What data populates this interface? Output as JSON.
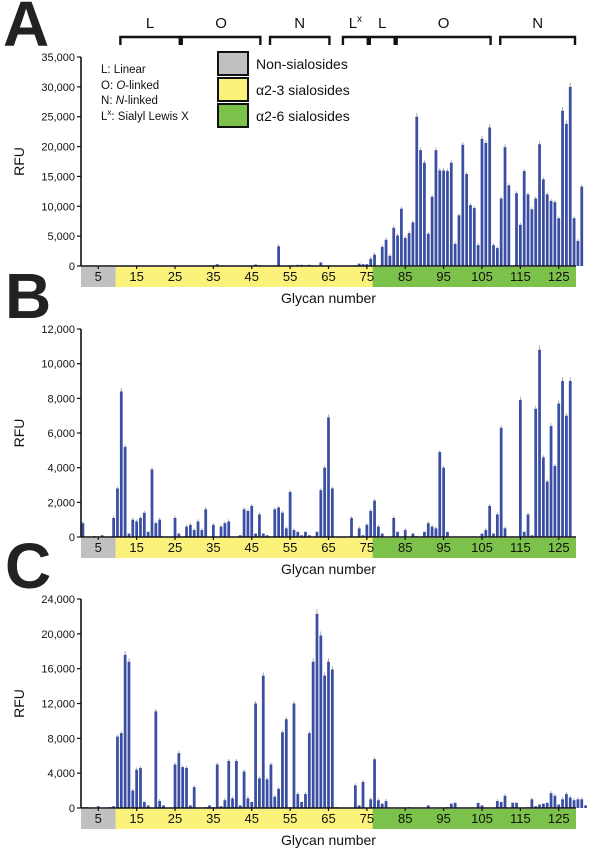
{
  "colors": {
    "bar": "#3a4fa3",
    "error": "#999999",
    "non_sialo": "#c0c0c0",
    "a23": "#faf27a",
    "a26": "#7cc24a",
    "axis": "#111111"
  },
  "legend": {
    "items": [
      {
        "label": "Non-sialosides",
        "color": "#c0c0c0"
      },
      {
        "label": "α2-3 sialosides",
        "color": "#faf27a"
      },
      {
        "label": "α2-6 sialosides",
        "color": "#7cc24a"
      }
    ]
  },
  "key": {
    "lines": [
      {
        "abbr": "L",
        "sup": "",
        "text": ": Linear",
        "ital": "",
        "rest": ""
      },
      {
        "abbr": "O",
        "sup": "",
        "text": ": ",
        "ital": "O",
        "rest": "-linked"
      },
      {
        "abbr": "N",
        "sup": "",
        "text": ": ",
        "ital": "N",
        "rest": "-linked"
      },
      {
        "abbr": "L",
        "sup": "x",
        "text": ": Sialyl Lewis X",
        "ital": "",
        "rest": ""
      }
    ]
  },
  "brackets": [
    {
      "label": "L",
      "sup": "",
      "from": 11,
      "to": 26
    },
    {
      "label": "O",
      "sup": "",
      "from": 27,
      "to": 47
    },
    {
      "label": "N",
      "sup": "",
      "from": 50,
      "to": 65
    },
    {
      "label": "L",
      "sup": "x",
      "from": 69,
      "to": 75
    },
    {
      "label": "L",
      "sup": "",
      "from": 76,
      "to": 82
    },
    {
      "label": "O",
      "sup": "",
      "from": 83,
      "to": 107
    },
    {
      "label": "N",
      "sup": "",
      "from": 110,
      "to": 129
    }
  ],
  "chart_data": [
    {
      "panel": "A",
      "type": "bar",
      "xlabel": "Glycan number",
      "ylabel": "RFU",
      "ylim": [
        0,
        35000
      ],
      "yticks": [
        0,
        5000,
        10000,
        15000,
        20000,
        25000,
        30000,
        35000
      ],
      "ytick_labels": [
        "0",
        "5,000",
        "10,000",
        "15,000",
        "20,000",
        "25,000",
        "30,000",
        "35,000"
      ],
      "xticks": [
        5,
        15,
        25,
        35,
        45,
        55,
        65,
        75,
        85,
        95,
        105,
        115,
        125
      ],
      "categories_range": [
        1,
        129
      ],
      "bands": [
        {
          "type": "Non-sialosides",
          "from": 1,
          "to": 9
        },
        {
          "type": "α2-3 sialosides",
          "from": 10,
          "to": 76
        },
        {
          "type": "α2-6 sialosides",
          "from": 77,
          "to": 129
        }
      ],
      "values": [
        0,
        0,
        0,
        0,
        0,
        0,
        0,
        0,
        0,
        0,
        0,
        0,
        0,
        0,
        0,
        0,
        0,
        0,
        0,
        0,
        0,
        0,
        0,
        0,
        0,
        0,
        0,
        0,
        0,
        0,
        0,
        0,
        0,
        0,
        0,
        300,
        100,
        0,
        0,
        0,
        0,
        0,
        0,
        0,
        0,
        250,
        150,
        0,
        0,
        0,
        0,
        3300,
        0,
        0,
        100,
        0,
        200,
        200,
        100,
        200,
        100,
        0,
        600,
        0,
        100,
        0,
        0,
        0,
        0,
        0,
        0,
        0,
        400,
        300,
        300,
        1200,
        1900,
        0,
        3200,
        4400,
        1700,
        6400,
        5100,
        9600,
        4700,
        5500,
        7300,
        25000,
        19400,
        17300,
        5400,
        11600,
        19400,
        16000,
        16000,
        15900,
        17300,
        3700,
        8500,
        20300,
        15400,
        10200,
        9700,
        3500,
        21300,
        20600,
        23200,
        3500,
        3000,
        11300,
        19900,
        13500,
        0,
        12200,
        6900,
        15900,
        12000,
        9500,
        11300,
        20400,
        14500,
        12000,
        10900,
        10700,
        8000,
        26000,
        23800,
        30000,
        8000,
        4200,
        13300
      ]
    },
    {
      "panel": "B",
      "type": "bar",
      "xlabel": "Glycan number",
      "ylabel": "RFU",
      "ylim": [
        0,
        12000
      ],
      "yticks": [
        0,
        2000,
        4000,
        6000,
        8000,
        10000,
        12000
      ],
      "ytick_labels": [
        "0",
        "2,000",
        "4,000",
        "6,000",
        "8,000",
        "10,000",
        "12,000"
      ],
      "xticks": [
        5,
        15,
        25,
        35,
        45,
        55,
        65,
        75,
        85,
        95,
        105,
        115,
        125
      ],
      "categories_range": [
        1,
        129
      ],
      "bands": [
        {
          "type": "Non-sialosides",
          "from": 1,
          "to": 9
        },
        {
          "type": "α2-3 sialosides",
          "from": 10,
          "to": 76
        },
        {
          "type": "α2-6 sialosides",
          "from": 77,
          "to": 129
        }
      ],
      "values": [
        800,
        0,
        0,
        50,
        0,
        100,
        0,
        0,
        1100,
        2800,
        8400,
        5200,
        200,
        1000,
        900,
        1100,
        1400,
        300,
        3900,
        800,
        1000,
        0,
        0,
        0,
        1100,
        200,
        0,
        600,
        700,
        400,
        900,
        400,
        1600,
        0,
        700,
        0,
        600,
        800,
        900,
        0,
        0,
        100,
        1600,
        1500,
        1800,
        200,
        1300,
        200,
        100,
        0,
        1600,
        1700,
        1400,
        500,
        2600,
        400,
        300,
        100,
        300,
        100,
        0,
        300,
        2700,
        4000,
        6900,
        2800,
        0,
        0,
        0,
        0,
        1100,
        0,
        500,
        100,
        700,
        1500,
        2100,
        600,
        200,
        0,
        0,
        1100,
        300,
        0,
        400,
        0,
        200,
        50,
        0,
        300,
        800,
        600,
        500,
        4900,
        4000,
        300,
        0,
        0,
        0,
        0,
        0,
        0,
        0,
        0,
        200,
        400,
        1800,
        200,
        1300,
        6300,
        500,
        0,
        0,
        0,
        7900,
        300,
        1300,
        100,
        7400,
        10800,
        4600,
        3200,
        6400,
        4100,
        7700,
        9000,
        7000,
        9000,
        0
      ]
    },
    {
      "panel": "C",
      "type": "bar",
      "xlabel": "Glycan number",
      "ylabel": "RFU",
      "ylim": [
        0,
        24000
      ],
      "yticks": [
        0,
        4000,
        8000,
        12000,
        16000,
        20000,
        24000
      ],
      "ytick_labels": [
        "0",
        "4,000",
        "8,000",
        "12,000",
        "16,000",
        "20,000",
        "24,000"
      ],
      "xticks": [
        5,
        15,
        25,
        35,
        45,
        55,
        65,
        75,
        85,
        95,
        105,
        115,
        125
      ],
      "categories_range": [
        1,
        129
      ],
      "bands": [
        {
          "type": "Non-sialosides",
          "from": 1,
          "to": 9
        },
        {
          "type": "α2-3 sialosides",
          "from": 10,
          "to": 76
        },
        {
          "type": "α2-6 sialosides",
          "from": 77,
          "to": 129
        }
      ],
      "values": [
        100,
        100,
        0,
        0,
        200,
        0,
        0,
        100,
        200,
        8200,
        8600,
        17600,
        16800,
        2000,
        4400,
        4600,
        700,
        300,
        0,
        11100,
        800,
        300,
        0,
        0,
        5000,
        6300,
        4700,
        4600,
        300,
        2400,
        0,
        0,
        100,
        300,
        100,
        5000,
        200,
        900,
        5400,
        1100,
        5400,
        300,
        4200,
        1100,
        700,
        12000,
        3400,
        15200,
        3300,
        5000,
        1300,
        2200,
        8700,
        10200,
        100,
        12000,
        1600,
        700,
        1600,
        8600,
        16800,
        22300,
        19800,
        15200,
        16800,
        15900,
        100,
        0,
        0,
        0,
        0,
        2600,
        300,
        3000,
        0,
        1000,
        5600,
        900,
        500,
        800,
        0,
        0,
        0,
        0,
        0,
        100,
        0,
        0,
        0,
        0,
        300,
        0,
        0,
        0,
        0,
        100,
        500,
        600,
        0,
        0,
        0,
        0,
        0,
        600,
        300,
        0,
        0,
        0,
        800,
        700,
        1400,
        0,
        600,
        600,
        0,
        0,
        100,
        1000,
        200,
        400,
        500,
        600,
        1700,
        1400,
        400,
        1000,
        1600,
        1200,
        900,
        1000,
        1000,
        300
      ]
    }
  ]
}
